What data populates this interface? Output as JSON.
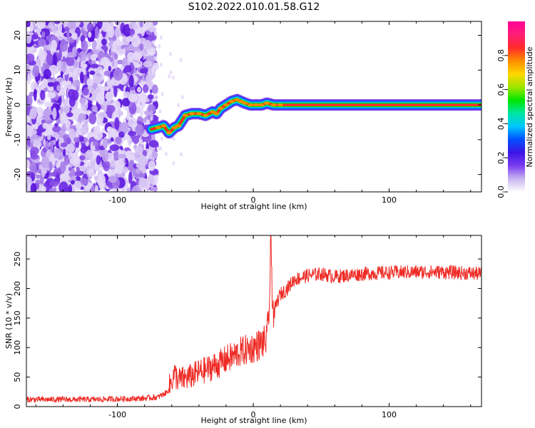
{
  "figure": {
    "title": "S102.2022.010.01.58.G12"
  },
  "chart_data": [
    {
      "type": "heatmap",
      "xlabel": "Height of straight line (km)",
      "ylabel": "Frequency (Hz)",
      "xlim": [
        -167,
        168
      ],
      "ylim": [
        -25,
        24
      ],
      "x_ticks": [
        -100,
        0,
        100
      ],
      "x_tick_labels": [
        "-100",
        "0",
        "100"
      ],
      "y_ticks": [
        -20,
        -10,
        0,
        10,
        20
      ],
      "y_tick_labels": [
        "-20",
        "-10",
        "0",
        "10",
        "20"
      ],
      "noise_region_x": [
        -167,
        -75
      ],
      "track": {
        "x": [
          -75,
          -70,
          -66,
          -62,
          -58,
          -55,
          -50,
          -45,
          -40,
          -35,
          -30,
          -27,
          -24,
          -20,
          -16,
          -12,
          -9,
          -6,
          -2,
          2,
          6,
          10,
          15,
          20,
          168
        ],
        "y": [
          -7,
          -6.5,
          -6,
          -8,
          -6.5,
          -6,
          -3,
          -2.5,
          -2.5,
          -3,
          -2,
          -2.5,
          -1,
          0,
          1,
          1.5,
          1,
          0.5,
          0,
          0,
          0,
          0.5,
          0,
          0,
          0
        ]
      },
      "colorbar": {
        "label": "Normalized spectral amplitude",
        "range": [
          0,
          1
        ],
        "ticks": [
          0.0,
          0.2,
          0.4,
          0.6,
          0.8
        ],
        "tick_labels": [
          "0.0",
          "0.2",
          "0.4",
          "0.6",
          "0.8"
        ],
        "colors": [
          "#ffffff",
          "#c8b4f0",
          "#7a3cf0",
          "#3c14e6",
          "#0050ff",
          "#00c8ff",
          "#00e6a0",
          "#00e600",
          "#a0e600",
          "#ffd700",
          "#ff8c00",
          "#ff2a2a",
          "#ff1e78",
          "#ff0096"
        ]
      }
    },
    {
      "type": "line",
      "xlabel": "Height of straight line (km)",
      "ylabel": "SNR (10 * v/v)",
      "xlim": [
        -167,
        168
      ],
      "ylim": [
        0,
        290
      ],
      "x_ticks": [
        -100,
        0,
        100
      ],
      "x_tick_labels": [
        "-100",
        "0",
        "100"
      ],
      "y_ticks": [
        0,
        50,
        100,
        150,
        200,
        250
      ],
      "y_tick_labels": [
        "0",
        "50",
        "100",
        "150",
        "200",
        "250"
      ],
      "color": "#ee2a24",
      "series": [
        {
          "x": [
            -167,
            -140,
            -120,
            -100,
            -80,
            -70,
            -63,
            -60,
            -58,
            -55,
            -50,
            -45,
            -40,
            -35,
            -30,
            -25,
            -20,
            -15,
            -10,
            -5,
            0,
            5,
            10,
            12,
            13,
            14,
            15,
            16,
            18,
            20,
            25,
            30,
            40,
            50,
            60,
            80,
            100,
            120,
            140,
            168
          ],
          "y": [
            12,
            12,
            12,
            13,
            14,
            16,
            25,
            45,
            55,
            45,
            48,
            52,
            58,
            62,
            68,
            72,
            80,
            85,
            92,
            96,
            100,
            106,
            112,
            180,
            280,
            200,
            150,
            165,
            180,
            190,
            200,
            215,
            222,
            225,
            220,
            225,
            227,
            228,
            228,
            225
          ]
        }
      ]
    }
  ]
}
